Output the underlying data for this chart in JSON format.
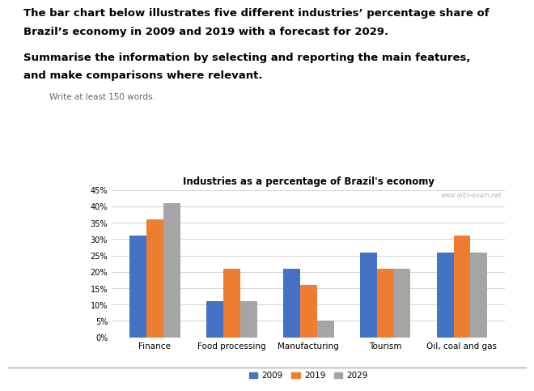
{
  "title": "Industries as a percentage of Brazil's economy",
  "header_line1": "The bar chart below illustrates five different industries’ percentage share of",
  "header_line2": "Brazil’s economy in 2009 and 2019 with a forecast for 2029.",
  "subheader_line1": "Summarise the information by selecting and reporting the main features,",
  "subheader_line2": "and make comparisons where relevant.",
  "write_prompt": "Write at least 150 words.",
  "watermark": "www.ielts-exam.net",
  "categories": [
    "Finance",
    "Food processing",
    "Manufacturing",
    "Tourism",
    "Oil, coal and gas"
  ],
  "years": [
    "2009",
    "2019",
    "2029"
  ],
  "values": {
    "2009": [
      31,
      11,
      21,
      26,
      26
    ],
    "2019": [
      36,
      21,
      16,
      21,
      31
    ],
    "2029": [
      41,
      11,
      5,
      21,
      26
    ]
  },
  "colors": {
    "2009": "#4472C4",
    "2019": "#ED7D31",
    "2029": "#A5A5A5"
  },
  "ylim": [
    0,
    45
  ],
  "yticks": [
    0,
    5,
    10,
    15,
    20,
    25,
    30,
    35,
    40,
    45
  ],
  "ytick_labels": [
    "0%",
    "5%",
    "10%",
    "15%",
    "20%",
    "25%",
    "30%",
    "35%",
    "40%",
    "45%"
  ],
  "background_color": "#FFFFFF",
  "bar_width": 0.22
}
